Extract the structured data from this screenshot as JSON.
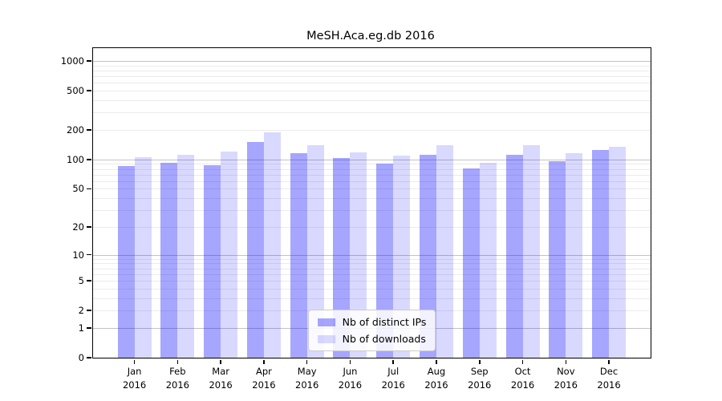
{
  "title": "MeSH.Aca.eg.db 2016",
  "chart_data": {
    "type": "bar",
    "title": "MeSH.Aca.eg.db 2016",
    "categories": [
      "Jan 2016",
      "Feb 2016",
      "Mar 2016",
      "Apr 2016",
      "May 2016",
      "Jun 2016",
      "Jul 2016",
      "Aug 2016",
      "Sep 2016",
      "Oct 2016",
      "Nov 2016",
      "Dec 2016"
    ],
    "series": [
      {
        "name": "Nb of distinct IPs",
        "color": "rgba(0,0,255,0.35)",
        "values": [
          85,
          93,
          88,
          150,
          117,
          103,
          90,
          112,
          81,
          112,
          96,
          125
        ]
      },
      {
        "name": "Nb of downloads",
        "color": "rgba(0,0,255,0.15)",
        "values": [
          105,
          112,
          121,
          188,
          139,
          119,
          109,
          141,
          93,
          140,
          116,
          135
        ]
      }
    ],
    "xlabel": "",
    "ylabel": "",
    "yscale": "log1p",
    "yticks": [
      0,
      1,
      2,
      5,
      10,
      20,
      50,
      100,
      200,
      500,
      1000
    ],
    "ylim": [
      0,
      1300
    ],
    "grid": "on",
    "legend_position": "lower center"
  },
  "colors": {
    "bar_distinct_ips": "rgba(0,0,255,0.35)",
    "bar_downloads": "rgba(0,0,255,0.15)",
    "grid_major": "#c3c3c3",
    "grid_minor": "#ebebeb",
    "axis": "#000000",
    "text": "#000000",
    "legend_border": "#cccccc",
    "legend_bg": "rgba(255,255,255,0.85)"
  }
}
